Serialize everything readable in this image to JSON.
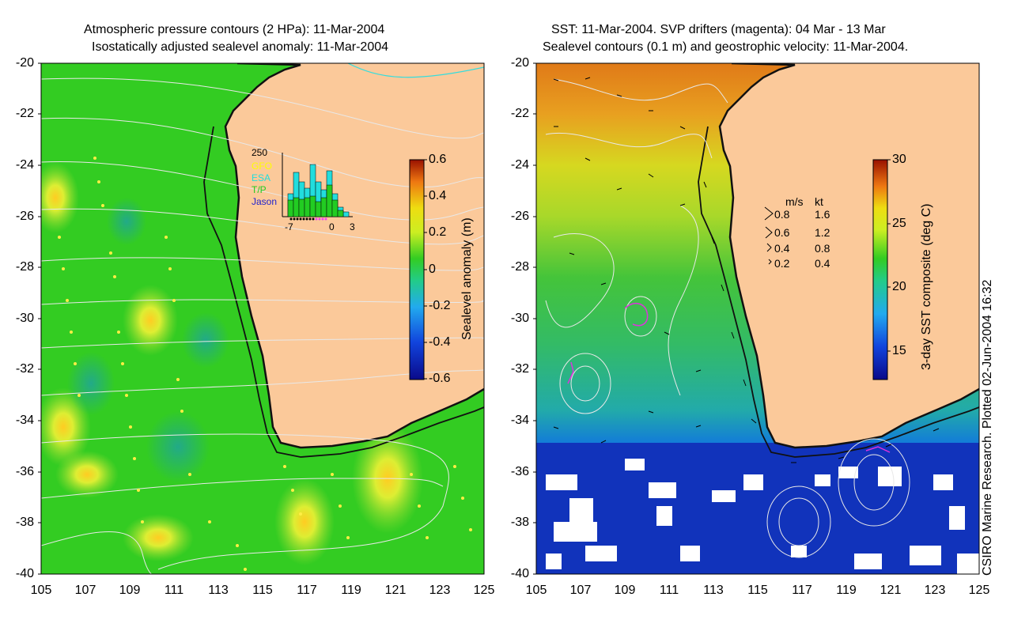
{
  "left_panel": {
    "title_line1": "Atmospheric pressure contours (2 HPa): 11-Mar-2004",
    "title_line2": "Isostatically adjusted sealevel anomaly: 11-Mar-2004",
    "colorbar_label": "Sealevel anomaly (m)",
    "colorbar_ticks": [
      "0.6",
      "0.4",
      "0.2",
      "0",
      "-0.2",
      "-0.4",
      "-0.6"
    ],
    "colors": {
      "ocean": "#33cc22",
      "land": "#fbc99a",
      "contour": "#e8e8e8"
    },
    "inset": {
      "ymax_label": "250",
      "x_labels": [
        "-7",
        "0",
        "3"
      ],
      "legend": [
        {
          "label": "GFO",
          "color": "#ffff00"
        },
        {
          "label": "ESA",
          "color": "#22dddd"
        },
        {
          "label": "T/P",
          "color": "#22cc22"
        },
        {
          "label": "Jason",
          "color": "#2222cc"
        }
      ]
    }
  },
  "right_panel": {
    "title_line1": "SST: 11-Mar-2004. SVP drifters (magenta): 04 Mar - 13 Mar",
    "title_line2": "Sealevel contours (0.1 m) and geostrophic velocity: 11-Mar-2004.",
    "colorbar_label": "3-day SST composite (deg C)",
    "colorbar_ticks": [
      "30",
      "25",
      "20",
      "15"
    ],
    "velocity_legend": {
      "header": [
        "m/s",
        "kt"
      ],
      "rows": [
        [
          "0.8",
          "1.6"
        ],
        [
          "0.6",
          "1.2"
        ],
        [
          "0.4",
          "0.8"
        ],
        [
          "0.2",
          "0.4"
        ]
      ]
    }
  },
  "axes": {
    "y_ticks": [
      "-20",
      "-22",
      "-24",
      "-26",
      "-28",
      "-30",
      "-32",
      "-34",
      "-36",
      "-38",
      "-40"
    ],
    "x_ticks": [
      "105",
      "107",
      "109",
      "111",
      "113",
      "115",
      "117",
      "119",
      "121",
      "123",
      "125"
    ]
  },
  "credit": "CSIRO Marine Research. Plotted 02-Jun-2004 16:32"
}
